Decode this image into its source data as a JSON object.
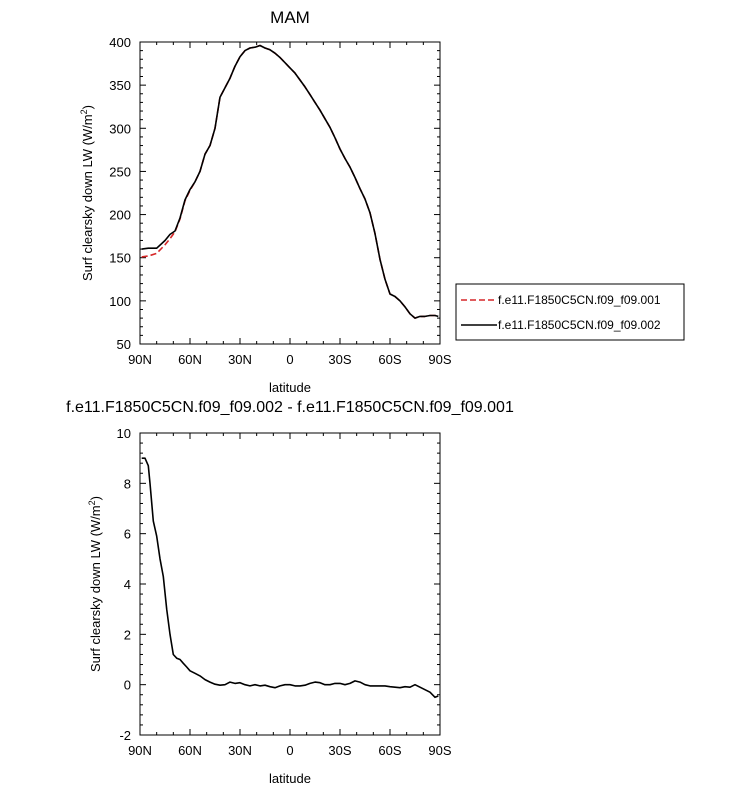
{
  "figure": {
    "top_title": "MAM",
    "bottom_title": "f.e11.F1850C5CN.f09_f09.002 - f.e11.F1850C5CN.f09_f09.001"
  },
  "chart_data": [
    {
      "type": "line",
      "title": "MAM",
      "xlabel": "latitude",
      "ylabel": "Surf clearsky down LW (W/m",
      "ylabel_sup": "2",
      "ylabel_close": ")",
      "xlim": [
        90,
        -90
      ],
      "ylim": [
        50,
        400
      ],
      "xticks": [
        {
          "value": 90,
          "label": "90N"
        },
        {
          "value": 60,
          "label": "60N"
        },
        {
          "value": 30,
          "label": "30N"
        },
        {
          "value": 0,
          "label": "0"
        },
        {
          "value": -30,
          "label": "30S"
        },
        {
          "value": -60,
          "label": "60S"
        },
        {
          "value": -90,
          "label": "90S"
        }
      ],
      "yticks": [
        50,
        100,
        150,
        200,
        250,
        300,
        350,
        400
      ],
      "legend": "right",
      "series": [
        {
          "name": "f.e11.F1850C5CN.f09_f09.001",
          "color": "#d62728",
          "dash": "dashed",
          "x": [
            89,
            85,
            80,
            75,
            72,
            69,
            66,
            63,
            60,
            57,
            54,
            51,
            48,
            45,
            42,
            39,
            36,
            33,
            30,
            27,
            24,
            21,
            18,
            15,
            12,
            9,
            6,
            3,
            0,
            -3,
            -6,
            -9,
            -12,
            -15,
            -18,
            -21,
            -24,
            -27,
            -30,
            -33,
            -36,
            -39,
            -42,
            -45,
            -48,
            -51,
            -54,
            -57,
            -60,
            -63,
            -66,
            -69,
            -72,
            -75,
            -78,
            -81,
            -84,
            -87,
            -89
          ],
          "values": [
            151,
            152,
            155,
            165,
            172,
            180,
            195,
            216,
            228,
            238,
            250,
            270,
            280,
            300,
            336,
            347,
            358,
            372,
            383,
            390,
            393,
            394,
            396,
            393,
            391,
            387,
            382,
            376,
            370,
            364,
            356,
            348,
            339,
            330,
            321,
            311,
            301,
            289,
            276,
            265,
            255,
            243,
            230,
            218,
            202,
            178,
            148,
            125,
            108,
            105,
            100,
            93,
            85,
            80,
            82,
            82,
            83,
            83,
            82
          ]
        },
        {
          "name": "f.e11.F1850C5CN.f09_f09.002",
          "color": "#000000",
          "dash": "solid",
          "x": [
            89,
            85,
            80,
            75,
            72,
            69,
            66,
            63,
            60,
            57,
            54,
            51,
            48,
            45,
            42,
            39,
            36,
            33,
            30,
            27,
            24,
            21,
            18,
            15,
            12,
            9,
            6,
            3,
            0,
            -3,
            -6,
            -9,
            -12,
            -15,
            -18,
            -21,
            -24,
            -27,
            -30,
            -33,
            -36,
            -39,
            -42,
            -45,
            -48,
            -51,
            -54,
            -57,
            -60,
            -63,
            -66,
            -69,
            -72,
            -75,
            -78,
            -81,
            -84,
            -87,
            -89
          ],
          "values": [
            160,
            161,
            161,
            170,
            177,
            181,
            196,
            217,
            229,
            238,
            250,
            270,
            280,
            300,
            336,
            347,
            358,
            372,
            383,
            390,
            393,
            394,
            396,
            393,
            391,
            387,
            382,
            376,
            370,
            364,
            356,
            348,
            339,
            330,
            321,
            311,
            301,
            289,
            276,
            265,
            255,
            243,
            230,
            218,
            202,
            178,
            148,
            125,
            108,
            105,
            100,
            93,
            85,
            80,
            82,
            82,
            83,
            83,
            82
          ]
        }
      ]
    },
    {
      "type": "line",
      "title": "f.e11.F1850C5CN.f09_f09.002 - f.e11.F1850C5CN.f09_f09.001",
      "xlabel": "latitude",
      "ylabel": "Surf clearsky down LW (W/m",
      "ylabel_sup": "2",
      "ylabel_close": ")",
      "xlim": [
        90,
        -90
      ],
      "ylim": [
        -2,
        10
      ],
      "xticks": [
        {
          "value": 90,
          "label": "90N"
        },
        {
          "value": 60,
          "label": "60N"
        },
        {
          "value": 30,
          "label": "30N"
        },
        {
          "value": 0,
          "label": "0"
        },
        {
          "value": -30,
          "label": "30S"
        },
        {
          "value": -60,
          "label": "60S"
        },
        {
          "value": -90,
          "label": "90S"
        }
      ],
      "yticks": [
        -2,
        0,
        2,
        4,
        6,
        8,
        10
      ],
      "series": [
        {
          "color": "#000000",
          "dash": "solid",
          "x": [
            89,
            87,
            85,
            84,
            82,
            80,
            78,
            76,
            74,
            72,
            70,
            68,
            66,
            64,
            62,
            60,
            57,
            54,
            51,
            48,
            45,
            42,
            39,
            36,
            33,
            30,
            27,
            24,
            21,
            18,
            15,
            12,
            9,
            6,
            3,
            0,
            -3,
            -6,
            -9,
            -12,
            -15,
            -18,
            -21,
            -24,
            -27,
            -30,
            -33,
            -36,
            -39,
            -42,
            -45,
            -48,
            -51,
            -54,
            -57,
            -60,
            -63,
            -66,
            -69,
            -72,
            -75,
            -78,
            -81,
            -84,
            -87,
            -89
          ],
          "values": [
            9.0,
            9.0,
            8.7,
            8.0,
            6.5,
            5.9,
            5.0,
            4.3,
            3.0,
            2.0,
            1.2,
            1.05,
            1.0,
            0.85,
            0.7,
            0.55,
            0.45,
            0.35,
            0.2,
            0.1,
            0.02,
            -0.02,
            0.0,
            0.1,
            0.05,
            0.08,
            0.0,
            -0.05,
            0.0,
            -0.05,
            -0.02,
            -0.08,
            -0.12,
            -0.05,
            0.0,
            0.0,
            -0.05,
            -0.05,
            -0.02,
            0.05,
            0.1,
            0.08,
            0.0,
            0.0,
            0.05,
            0.05,
            0.0,
            0.05,
            0.15,
            0.1,
            0.0,
            -0.05,
            -0.05,
            -0.05,
            -0.05,
            -0.08,
            -0.1,
            -0.12,
            -0.08,
            -0.1,
            0.0,
            -0.1,
            -0.2,
            -0.3,
            -0.5,
            -0.45
          ]
        }
      ]
    }
  ]
}
